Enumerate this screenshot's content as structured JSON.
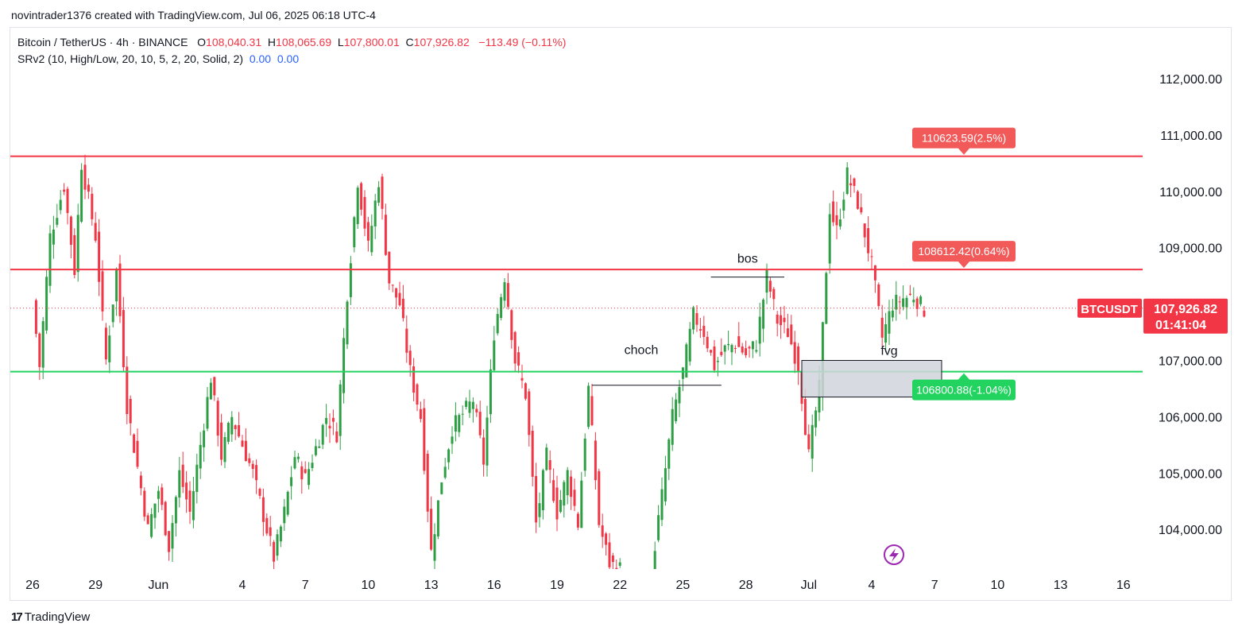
{
  "header": {
    "credit": "novintrader1376 created with TradingView.com, Jul 06, 2025 06:18 UTC-4"
  },
  "legend": {
    "symbol": "Bitcoin / TetherUS · 4h · BINANCE",
    "o_label": "O",
    "o_value": "108,040.31",
    "h_label": "H",
    "h_value": "108,065.69",
    "l_label": "L",
    "l_value": "107,800.01",
    "c_label": "C",
    "c_value": "107,926.82",
    "change": "−113.49 (−0.11%)",
    "indicator": "SRv2 (10, High/Low, 20, 10, 5, 2, 20, Solid, 2)",
    "indicator_v1": "0.00",
    "indicator_v2": "0.00"
  },
  "footer": {
    "brand": "TradingView",
    "brand_icon": "tradingview-logo-icon"
  },
  "chart_data": {
    "type": "candlestick",
    "title": "Bitcoin / TetherUS · 4h · BINANCE",
    "ylim": [
      103300,
      112700
    ],
    "y_ticks": [
      104000,
      105000,
      106000,
      107000,
      108000,
      109000,
      110000,
      111000,
      112000
    ],
    "y_tick_labels": [
      "104,000.00",
      "105,000.00",
      "106,000.00",
      "107,000.00",
      "108,000.00",
      "109,000.00",
      "110,000.00",
      "111,000.00",
      "112,000.00"
    ],
    "x_axis_labels": [
      "26",
      "29",
      "Jun",
      "4",
      "7",
      "10",
      "13",
      "16",
      "19",
      "22",
      "25",
      "28",
      "Jul",
      "4",
      "7",
      "10",
      "13",
      "16"
    ],
    "x_axis_label_index": [
      0,
      18,
      36,
      60,
      78,
      96,
      114,
      132,
      150,
      168,
      186,
      204,
      222,
      240,
      258,
      276,
      294,
      312
    ],
    "candles_per_day": 6,
    "anchors": [
      [
        0,
        108050
      ],
      [
        2,
        106900
      ],
      [
        5,
        109200
      ],
      [
        9,
        110100
      ],
      [
        12,
        108600
      ],
      [
        14,
        110500
      ],
      [
        18,
        109200
      ],
      [
        21,
        107000
      ],
      [
        24,
        108600
      ],
      [
        27,
        106200
      ],
      [
        33,
        104000
      ],
      [
        36,
        104700
      ],
      [
        39,
        103700
      ],
      [
        42,
        105000
      ],
      [
        45,
        104300
      ],
      [
        51,
        106700
      ],
      [
        54,
        105300
      ],
      [
        57,
        106000
      ],
      [
        63,
        105000
      ],
      [
        69,
        103500
      ],
      [
        72,
        104300
      ],
      [
        75,
        105300
      ],
      [
        78,
        104900
      ],
      [
        84,
        106000
      ],
      [
        87,
        105700
      ],
      [
        90,
        108200
      ],
      [
        93,
        110200
      ],
      [
        96,
        109000
      ],
      [
        99,
        110200
      ],
      [
        102,
        108400
      ],
      [
        105,
        108000
      ],
      [
        108,
        106800
      ],
      [
        111,
        106000
      ],
      [
        114,
        103600
      ],
      [
        117,
        104900
      ],
      [
        120,
        105800
      ],
      [
        126,
        106300
      ],
      [
        129,
        105200
      ],
      [
        132,
        107500
      ],
      [
        135,
        108500
      ],
      [
        138,
        107000
      ],
      [
        141,
        106400
      ],
      [
        144,
        104100
      ],
      [
        147,
        105300
      ],
      [
        150,
        104300
      ],
      [
        153,
        105000
      ],
      [
        156,
        104100
      ],
      [
        159,
        106500
      ],
      [
        162,
        104100
      ],
      [
        165,
        103400
      ],
      [
        168,
        103300
      ],
      [
        177,
        103300
      ],
      [
        180,
        104600
      ],
      [
        183,
        106000
      ],
      [
        186,
        106800
      ],
      [
        189,
        107800
      ],
      [
        192,
        107500
      ],
      [
        195,
        106900
      ],
      [
        198,
        107200
      ],
      [
        201,
        107300
      ],
      [
        204,
        107100
      ],
      [
        207,
        107300
      ],
      [
        210,
        108500
      ],
      [
        213,
        107700
      ],
      [
        216,
        107500
      ],
      [
        219,
        106900
      ],
      [
        222,
        105300
      ],
      [
        225,
        106500
      ],
      [
        228,
        109700
      ],
      [
        230,
        109300
      ],
      [
        233,
        110300
      ],
      [
        236,
        109800
      ],
      [
        240,
        108700
      ],
      [
        243,
        107400
      ],
      [
        246,
        108000
      ],
      [
        249,
        108100
      ],
      [
        252,
        108150
      ],
      [
        255,
        107900
      ]
    ],
    "last_price": 107926.82,
    "gap_start": 168,
    "gap_end": 178,
    "resistance_1": {
      "value": 110623.59,
      "label": "110623.59(2.5%)"
    },
    "resistance_2": {
      "value": 108612.42,
      "label": "108612.42(0.64%)"
    },
    "support": {
      "value": 106800.88,
      "label": "106800.88(-1.04%)"
    },
    "price_tag": {
      "symbol": "BTCUSDT",
      "price": "107,926.82",
      "countdown": "01:41:04"
    },
    "annotations": {
      "bos": {
        "label": "bos",
        "price": 108480,
        "x_start": 194,
        "x_end": 215
      },
      "choch": {
        "label": "choch",
        "price": 106560,
        "x_start": 160,
        "x_end": 197
      },
      "fvg": {
        "label": "fvg",
        "top": 107000,
        "bottom": 106350,
        "x_start": 220,
        "x_end": 260
      }
    },
    "colors": {
      "up": "#089981",
      "up_fill": "#2e9e45",
      "down": "#f23645",
      "support": "#22d360",
      "resistance": "#f23645",
      "fvg": "#b2b5be",
      "accent": "#9c27b0"
    }
  }
}
